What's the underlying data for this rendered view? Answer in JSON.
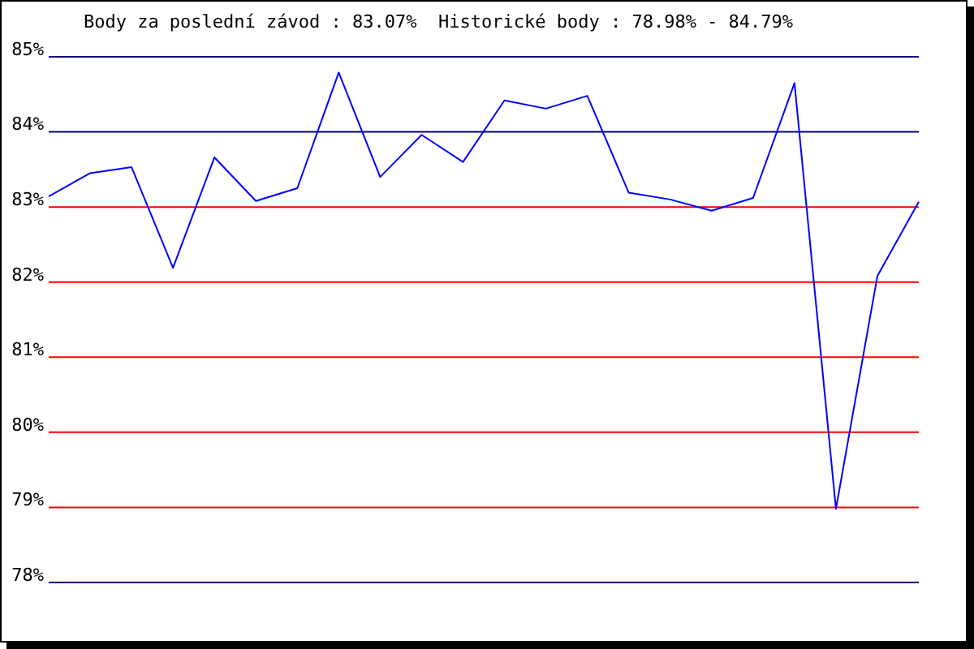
{
  "chart_data": {
    "type": "line",
    "title": "Body za poslední závod : 83.07%  Historické body : 78.98% - 84.79%",
    "categories": [
      null,
      null,
      null,
      null,
      null,
      null,
      null,
      null,
      null,
      null,
      null,
      null,
      null,
      null,
      null,
      null,
      null,
      null,
      null,
      null,
      null,
      null
    ],
    "series": [
      {
        "color": "#0000ff",
        "values": [
          83.14,
          83.45,
          83.53,
          82.19,
          83.66,
          83.08,
          83.25,
          84.79,
          83.4,
          83.96,
          83.6,
          84.42,
          84.31,
          84.48,
          83.19,
          83.1,
          82.95,
          83.12,
          84.65,
          78.98,
          82.08,
          83.07
        ]
      }
    ],
    "ylim": [
      78,
      85
    ],
    "yticks": [
      {
        "value": 78,
        "label": "78%"
      },
      {
        "value": 79,
        "label": "79%"
      },
      {
        "value": 80,
        "label": "80%"
      },
      {
        "value": 81,
        "label": "81%"
      },
      {
        "value": 82,
        "label": "82%"
      },
      {
        "value": 83,
        "label": "83%"
      },
      {
        "value": 84,
        "label": "84%"
      },
      {
        "value": 85,
        "label": "85%"
      }
    ],
    "ref_lines": [
      {
        "axis": "y",
        "value": 78,
        "color": "#000080"
      },
      {
        "axis": "y",
        "value": 84,
        "color": "#000080"
      },
      {
        "axis": "y",
        "value": 85,
        "color": "#000080"
      },
      {
        "axis": "y",
        "value": 79,
        "color": "#ff0000"
      },
      {
        "axis": "y",
        "value": 80,
        "color": "#ff0000"
      },
      {
        "axis": "y",
        "value": 81,
        "color": "#ff0000"
      },
      {
        "axis": "y",
        "value": 82,
        "color": "#ff0000"
      },
      {
        "axis": "y",
        "value": 83,
        "color": "#ff0000"
      }
    ],
    "marker": "none",
    "line_style": "solid"
  }
}
